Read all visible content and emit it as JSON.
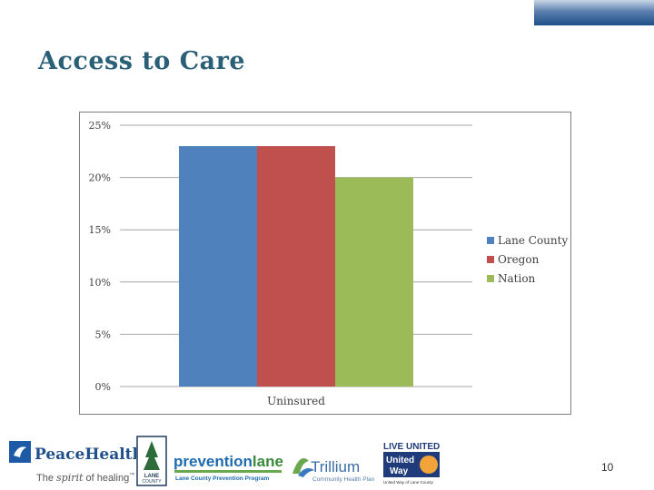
{
  "slide": {
    "title": "Access to Care",
    "page_number": "10"
  },
  "colors": {
    "title": "#2a5f78",
    "lane_county": "#4f81bd",
    "oregon": "#c0504d",
    "nation": "#9bbb59",
    "gridline": "#a6a6a6"
  },
  "chart_data": {
    "type": "bar",
    "categories": [
      "Uninsured"
    ],
    "series": [
      {
        "name": "Lane County",
        "values": [
          23
        ],
        "color": "#4f81bd"
      },
      {
        "name": "Oregon",
        "values": [
          23
        ],
        "color": "#c0504d"
      },
      {
        "name": "Nation",
        "values": [
          20
        ],
        "color": "#9bbb59"
      }
    ],
    "ylim": [
      0,
      25
    ],
    "yticks": [
      "0%",
      "5%",
      "10%",
      "15%",
      "20%",
      "25%"
    ],
    "ytick_values": [
      0,
      5,
      10,
      15,
      20,
      25
    ],
    "grid": true,
    "legend_position": "right"
  },
  "logos": {
    "peacehealth": {
      "name": "PeaceHealth",
      "tagline_pre": "The ",
      "tagline_spirit": "spirit",
      "tagline_post": " of healing",
      "tm": "™"
    },
    "lane_county": {
      "line1": "LANE",
      "line2": "COUNTY"
    },
    "preventionlane": {
      "name_a": "prevention",
      "name_b": "lane",
      "subtitle": "Lane County Prevention Program"
    },
    "trillium": {
      "name": "Trillium",
      "subtitle": "Community Health Plan"
    },
    "united_way": {
      "top": "LIVE UNITED",
      "line1": "United",
      "line2": "Way",
      "subtitle": "United Way of Lane County"
    }
  }
}
